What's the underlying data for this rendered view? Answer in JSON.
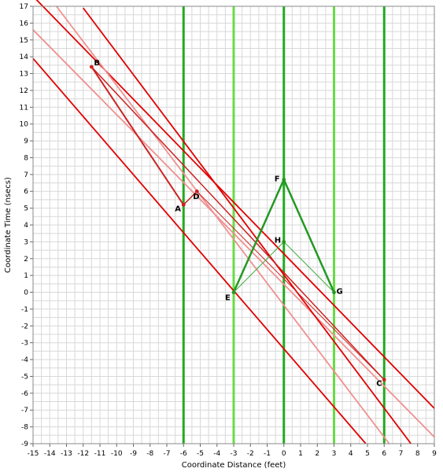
{
  "chart_data": {
    "type": "line",
    "xlabel": "Coordinate Distance (feet)",
    "ylabel": "Coordinate Time (nsecs)",
    "xlim": [
      -15,
      9
    ],
    "ylim": [
      -9,
      17
    ],
    "grid": true,
    "x_ticks": [
      "-15",
      "-14",
      "-13",
      "-12",
      "-11",
      "-10",
      "-9",
      "-8",
      "-7",
      "-6",
      "-5",
      "-4",
      "-3",
      "-2",
      "-1",
      "0",
      "1",
      "2",
      "3",
      "4",
      "5",
      "6",
      "7",
      "8",
      "9"
    ],
    "y_ticks": [
      "-9",
      "-8",
      "-7",
      "-6",
      "-5",
      "-4",
      "-3",
      "-2",
      "-1",
      "0",
      "1",
      "2",
      "3",
      "4",
      "5",
      "6",
      "7",
      "8",
      "9",
      "10",
      "11",
      "12",
      "13",
      "14",
      "15",
      "16",
      "17"
    ],
    "colors": {
      "vertical_bright": "#66dd44",
      "vertical_dark": "#22aa22",
      "diagonal_red": "#e00000",
      "diagonal_pink": "#f09090",
      "triangle_red": "#cc2222",
      "triangle_green": "#229922",
      "thin_green": "#44aa44",
      "grid": "#d8d8d8"
    },
    "vertical_lines": [
      {
        "x": -6,
        "style": "dark"
      },
      {
        "x": -3,
        "style": "bright"
      },
      {
        "x": 0,
        "style": "dark"
      },
      {
        "x": 3,
        "style": "bright"
      },
      {
        "x": 6,
        "style": "dark"
      }
    ],
    "diagonal_lines": [
      {
        "style": "red",
        "p1": [
          -15,
          17.6
        ],
        "p2": [
          9,
          -6.9
        ]
      },
      {
        "style": "pink",
        "p1": [
          -15,
          15.6
        ],
        "p2": [
          9,
          -8.6
        ]
      },
      {
        "style": "red",
        "p1": [
          -15,
          13.9
        ],
        "p2": [
          4.9,
          -9
        ]
      },
      {
        "style": "red",
        "p1": [
          -12,
          16.9
        ],
        "p2": [
          7.6,
          -9
        ]
      },
      {
        "style": "pink",
        "p1": [
          -13.6,
          17.0
        ],
        "p2": [
          6.3,
          -9
        ]
      }
    ],
    "points": [
      {
        "label": "A",
        "x": -6,
        "y": 5.2
      },
      {
        "label": "B",
        "x": -11.5,
        "y": 13.4
      },
      {
        "label": "C",
        "x": 6,
        "y": -5.2
      },
      {
        "label": "D",
        "x": -5.2,
        "y": 6.0
      },
      {
        "label": "E",
        "x": -3,
        "y": 0
      },
      {
        "label": "F",
        "x": 0,
        "y": 6.7
      },
      {
        "label": "G",
        "x": 3,
        "y": 0
      },
      {
        "label": "H",
        "x": 0,
        "y": 3.0
      }
    ],
    "segments": [
      {
        "from": "B",
        "to": "A",
        "style": "triangle_red",
        "width": 2
      },
      {
        "from": "A",
        "to": "D",
        "style": "triangle_red",
        "width": 1.5
      },
      {
        "from": "B",
        "to": "C",
        "style": "triangle_red",
        "width": 1.5
      },
      {
        "from": "D",
        "to": "C",
        "style": "triangle_red",
        "width": 1
      },
      {
        "from": "E",
        "to": "F",
        "style": "triangle_green",
        "width": 2.5
      },
      {
        "from": "F",
        "to": "G",
        "style": "triangle_green",
        "width": 2.5
      },
      {
        "from": "E",
        "to": "H",
        "style": "thin_green",
        "width": 1
      },
      {
        "from": "H",
        "to": "G",
        "style": "thin_green",
        "width": 1
      }
    ]
  }
}
